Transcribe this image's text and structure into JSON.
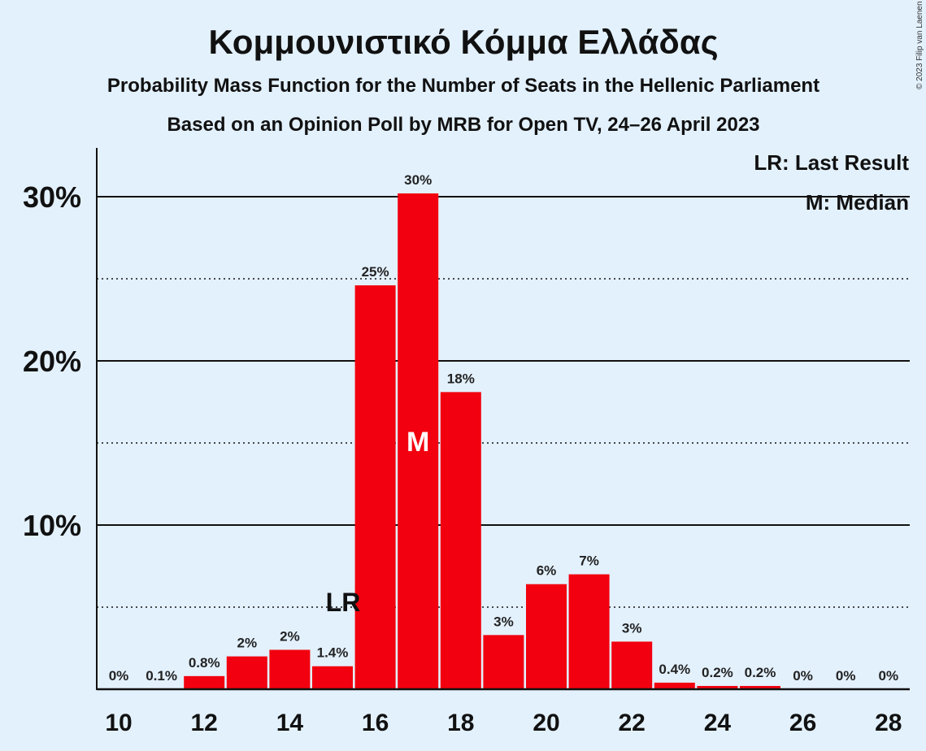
{
  "header": {
    "title": "Κομμουνιστικό Κόμμα Ελλάδας",
    "subtitle": "Probability Mass Function for the Number of Seats in the Hellenic Parliament",
    "source": "Based on an Opinion Poll by MRB for Open TV, 24–26 April 2023",
    "copyright": "© 2023 Filip van Laenen"
  },
  "legend": {
    "last_result": "LR: Last Result",
    "median": "M: Median"
  },
  "colors": {
    "bar": "#f2000f",
    "background": "#e3f1fd",
    "text": "#111111"
  },
  "chart_data": {
    "type": "bar",
    "categories": [
      10,
      11,
      12,
      13,
      14,
      15,
      16,
      17,
      18,
      19,
      20,
      21,
      22,
      23,
      24,
      25,
      26,
      27,
      28
    ],
    "values": [
      0,
      0.05,
      0.8,
      2.0,
      2.4,
      1.4,
      24.6,
      30.2,
      18.1,
      3.3,
      6.4,
      7.0,
      2.9,
      0.4,
      0.2,
      0.2,
      0,
      0,
      0
    ],
    "data_labels": [
      "0%",
      "0.1%",
      "0.8%",
      "2%",
      "2%",
      "1.4%",
      "25%",
      "30%",
      "18%",
      "3%",
      "6%",
      "7%",
      "3%",
      "0.4%",
      "0.2%",
      "0.2%",
      "0%",
      "0%",
      "0%"
    ],
    "x_tick_labels": [
      "10",
      "12",
      "14",
      "16",
      "18",
      "20",
      "22",
      "24",
      "26",
      "28"
    ],
    "y_tick_labels": [
      "10%",
      "20%",
      "30%"
    ],
    "ylim": [
      0,
      33
    ],
    "grid_solid": [
      10,
      20,
      30
    ],
    "grid_dotted": [
      5,
      15,
      25
    ],
    "last_result": {
      "seats": 15,
      "label": "LR"
    },
    "median": {
      "seats": 17,
      "label": "M"
    },
    "legend_position": "top-right"
  }
}
